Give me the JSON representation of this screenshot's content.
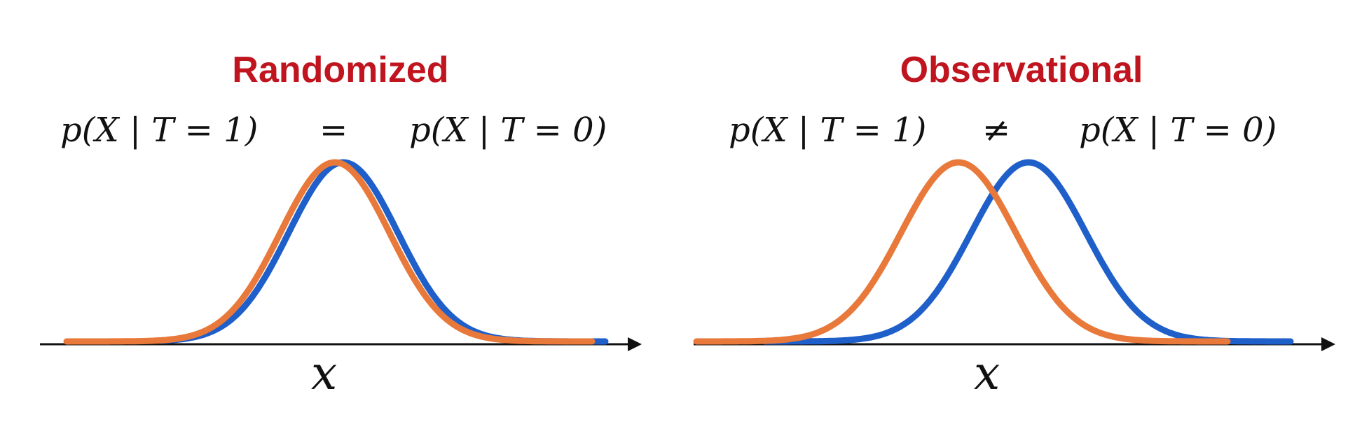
{
  "colors": {
    "title": "#c0141f",
    "treated_curve": "#1f5fc9",
    "control_curve": "#e8793a",
    "axis": "#111111"
  },
  "panels": [
    {
      "title": "Randomized",
      "lhs": "p(X | T = 1)",
      "relation": "=",
      "rhs": "p(X | T = 0)",
      "axis_label": "x"
    },
    {
      "title": "Observational",
      "lhs": "p(X | T = 1)",
      "relation": "≠",
      "rhs": "p(X | T = 0)",
      "axis_label": "x"
    }
  ]
}
